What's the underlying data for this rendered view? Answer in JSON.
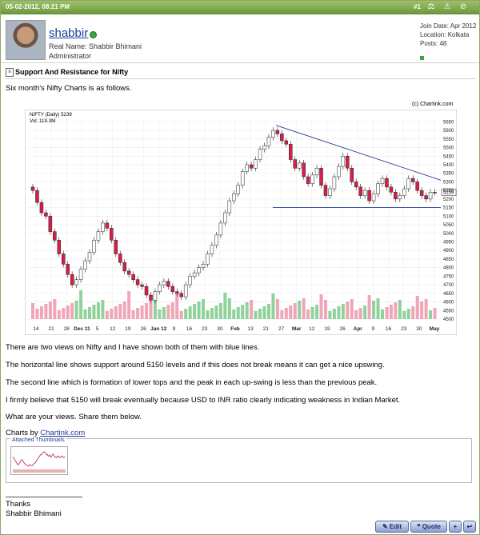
{
  "header": {
    "date": "05-02-2012, 08:21 PM",
    "post_number": "#1"
  },
  "user": {
    "username": "shabbir",
    "real_name": "Real Name: Shabbir Bhimani",
    "role": "Administrator",
    "join_date": "Join Date: Apr 2012",
    "location": "Location: Kolkata",
    "posts": "Posts: 48"
  },
  "post": {
    "title": "Support And Resistance for Nifty",
    "intro": "Six month's Nifty Charts is as follows.",
    "paragraphs": [
      "There are two views on Nifty and I have shown both of them with blue lines.",
      "The horizontal line shows support around 5150 levels and if this does not break means it can get a nice upswing.",
      "The second line which is formation of lower tops and the peak in each up-swing is less than the previous peak.",
      "I firmly believe that 5150 will break eventually because USD to INR ratio clearly indicating weakness in Indian Market.",
      "What are your views. Share them below."
    ],
    "charts_by_prefix": "Charts by ",
    "charts_by_link": "Chartink.com",
    "attached_label": "Attached Thumbnails",
    "signature": [
      "Thanks",
      "Shabbir Bhimani"
    ]
  },
  "buttons": {
    "edit": "Edit",
    "quote": "Quote"
  },
  "icons": {
    "header": [
      "scales-icon",
      "warning-icon",
      "ban-icon"
    ],
    "title": "document-icon"
  },
  "chart_data": {
    "type": "candlestick",
    "credit": "(c) Chartink.com",
    "legend": [
      "NIFTY (Daily) 5239",
      "Vol: 119.3M"
    ],
    "last_price": "5239",
    "x_ticks": [
      "14",
      "21",
      "28",
      "Dec 11",
      "5",
      "12",
      "19",
      "26",
      "Jan 12",
      "9",
      "16",
      "23",
      "30",
      "Feb",
      "13",
      "21",
      "27",
      "Mar",
      "12",
      "19",
      "26",
      "Apr",
      "9",
      "16",
      "23",
      "30",
      "May"
    ],
    "y_ticks": [
      4500,
      4550,
      4600,
      4650,
      4700,
      4750,
      4800,
      4850,
      4900,
      4950,
      5000,
      5050,
      5100,
      5150,
      5200,
      5250,
      5300,
      5350,
      5400,
      5450,
      5500,
      5550,
      5600,
      5650
    ],
    "ylim": [
      4500,
      5675
    ],
    "volume_ticks": [
      "400M",
      "300M",
      "200M",
      "100M",
      "0M"
    ],
    "close_series": [
      5250,
      5180,
      5120,
      5100,
      5010,
      4960,
      4880,
      4820,
      4760,
      4700,
      4730,
      4790,
      4840,
      4890,
      4960,
      5010,
      5060,
      5030,
      4960,
      4880,
      4830,
      4780,
      4760,
      4730,
      4700,
      4690,
      4640,
      4610,
      4660,
      4700,
      4720,
      4690,
      4660,
      4650,
      4630,
      4700,
      4750,
      4770,
      4800,
      4820,
      4880,
      4930,
      4990,
      5060,
      5120,
      5190,
      5230,
      5280,
      5360,
      5400,
      5380,
      5430,
      5490,
      5510,
      5560,
      5600,
      5580,
      5540,
      5520,
      5430,
      5380,
      5410,
      5330,
      5290,
      5340,
      5380,
      5280,
      5220,
      5260,
      5330,
      5390,
      5450,
      5380,
      5300,
      5270,
      5220,
      5250,
      5190,
      5230,
      5290,
      5320,
      5270,
      5240,
      5200,
      5220,
      5260,
      5320,
      5300,
      5250,
      5220,
      5200,
      5240,
      5239
    ],
    "support_line": 5150,
    "resistance_line": {
      "from": [
        "Feb 21",
        5630
      ],
      "to": [
        "May",
        5310
      ]
    }
  }
}
